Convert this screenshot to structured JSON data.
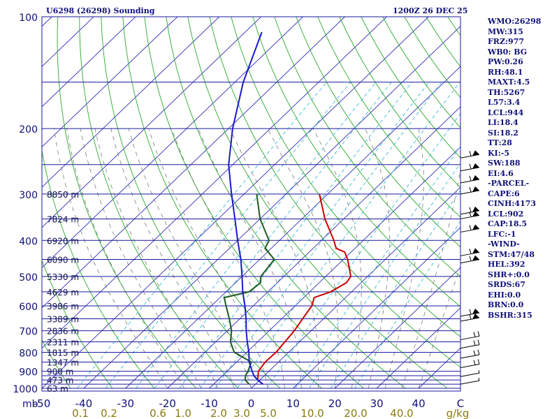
{
  "header": {
    "station": "U6298 (26298) Sounding",
    "valid_time": "1200Z 26 DEC 25"
  },
  "indices": [
    "WMO:26298",
    "MW:315",
    "FRZ:977",
    "WB0: BG",
    "PW:0.26",
    "RH:48.1",
    "MAXT:4.5",
    "TH:5267",
    "L57:3.4",
    "LCL:944",
    "LI:18.4",
    "SI:18.2",
    "TT:28",
    "KI:-5",
    "SW:188",
    "EI:4.6",
    "-PARCEL-",
    "CAPE:6",
    "CINH:4173",
    "LCL:902",
    "CAP:18.5",
    "LFC:-1",
    "-WIND-",
    "STM:47/48",
    "HEL:392",
    "SHR+:0.0",
    "SRDS:67",
    "EHI:0.0",
    "BRN:0.0",
    "BSHR:315"
  ],
  "colors": {
    "isobar": "#1a1aa0",
    "isotherm": "#3030b8",
    "dry_adiabat": "#2aaa2a",
    "mixing_ratio": "#3bb8d8",
    "moist_adiabat": "#7a7a7a",
    "temperature": "#cc0000",
    "dewpoint": "#1e5a1e",
    "parcel": "#1a1ac8",
    "axis_text": "#10107a",
    "mix_text": "#8a7a10"
  },
  "chart_data": {
    "type": "line",
    "title": "U6298 (26298) Sounding",
    "xlabel": "",
    "ylabel": "mb",
    "pressure_range": [
      100,
      1000
    ],
    "temperature_range": [
      -50,
      50
    ],
    "pressure_ticks": [
      100,
      200,
      300,
      400,
      500,
      600,
      700,
      800,
      900,
      1000
    ],
    "temperature_ticks": [
      -50,
      -40,
      -30,
      -20,
      -10,
      0,
      10,
      20,
      30,
      40
    ],
    "temperature_tick_labels": [
      "-50",
      "-40",
      "-30",
      "-20",
      "-10",
      "0",
      "10",
      "20",
      "30",
      "40",
      "C"
    ],
    "mixing_ratio_labels": [
      "0.1",
      "0.2",
      "0.6",
      "1.0",
      "2.0",
      "3.0",
      "5.0",
      "10.0",
      "20.0",
      "40.0",
      "g/kg"
    ],
    "height_labels": [
      {
        "p": 300,
        "label": "8850 m"
      },
      {
        "p": 350,
        "label": "7824 m"
      },
      {
        "p": 400,
        "label": "6920 m"
      },
      {
        "p": 450,
        "label": "6090 m"
      },
      {
        "p": 500,
        "label": "5330 m"
      },
      {
        "p": 550,
        "label": "4629 m"
      },
      {
        "p": 600,
        "label": "3986 m"
      },
      {
        "p": 650,
        "label": "3389 m"
      },
      {
        "p": 700,
        "label": "2836 m"
      },
      {
        "p": 750,
        "label": "2311 m"
      },
      {
        "p": 800,
        "label": "1815 m"
      },
      {
        "p": 850,
        "label": "1347 m"
      },
      {
        "p": 900,
        "label": "900 m"
      },
      {
        "p": 950,
        "label": "473 m"
      },
      {
        "p": 1000,
        "label": "63 m"
      }
    ],
    "series": [
      {
        "name": "Temperature",
        "points": [
          {
            "p": 975,
            "t": 1.8
          },
          {
            "p": 950,
            "t": -0.5
          },
          {
            "p": 925,
            "t": -1.5
          },
          {
            "p": 900,
            "t": -2.5
          },
          {
            "p": 850,
            "t": -3.2
          },
          {
            "p": 800,
            "t": -3.0
          },
          {
            "p": 750,
            "t": -3.5
          },
          {
            "p": 700,
            "t": -4.0
          },
          {
            "p": 650,
            "t": -5.0
          },
          {
            "p": 600,
            "t": -6.0
          },
          {
            "p": 570,
            "t": -7.5
          },
          {
            "p": 550,
            "t": -5.0
          },
          {
            "p": 520,
            "t": -3.5
          },
          {
            "p": 500,
            "t": -4.0
          },
          {
            "p": 450,
            "t": -9.0
          },
          {
            "p": 430,
            "t": -11.5
          },
          {
            "p": 420,
            "t": -14.5
          },
          {
            "p": 400,
            "t": -17.0
          },
          {
            "p": 350,
            "t": -24.5
          },
          {
            "p": 300,
            "t": -32.0
          }
        ]
      },
      {
        "name": "Dewpoint",
        "points": [
          {
            "p": 975,
            "t": -1.5
          },
          {
            "p": 950,
            "t": -3.5
          },
          {
            "p": 925,
            "t": -4.5
          },
          {
            "p": 900,
            "t": -5.0
          },
          {
            "p": 850,
            "t": -6.5
          },
          {
            "p": 800,
            "t": -13.0
          },
          {
            "p": 750,
            "t": -16.5
          },
          {
            "p": 700,
            "t": -19.0
          },
          {
            "p": 650,
            "t": -22.5
          },
          {
            "p": 600,
            "t": -26.5
          },
          {
            "p": 570,
            "t": -29.0
          },
          {
            "p": 550,
            "t": -24.5
          },
          {
            "p": 520,
            "t": -24.0
          },
          {
            "p": 500,
            "t": -25.5
          },
          {
            "p": 450,
            "t": -26.5
          },
          {
            "p": 420,
            "t": -31.5
          },
          {
            "p": 400,
            "t": -32.5
          },
          {
            "p": 350,
            "t": -40.0
          },
          {
            "p": 300,
            "t": -47.0
          }
        ]
      },
      {
        "name": "Parcel",
        "points": [
          {
            "p": 975,
            "t": 1.8
          },
          {
            "p": 950,
            "t": -0.5
          },
          {
            "p": 925,
            "t": -2.5
          },
          {
            "p": 900,
            "t": -4.0
          },
          {
            "p": 850,
            "t": -7.0
          },
          {
            "p": 800,
            "t": -9.5
          },
          {
            "p": 750,
            "t": -12.5
          },
          {
            "p": 700,
            "t": -15.5
          },
          {
            "p": 650,
            "t": -18.5
          },
          {
            "p": 600,
            "t": -22.0
          },
          {
            "p": 550,
            "t": -26.0
          },
          {
            "p": 500,
            "t": -30.0
          },
          {
            "p": 450,
            "t": -34.5
          },
          {
            "p": 400,
            "t": -40.0
          },
          {
            "p": 350,
            "t": -46.0
          },
          {
            "p": 300,
            "t": -53.0
          },
          {
            "p": 250,
            "t": -61.0
          },
          {
            "p": 200,
            "t": -69.0
          },
          {
            "p": 150,
            "t": -78.0
          },
          {
            "p": 110,
            "t": -86.0
          }
        ]
      }
    ],
    "wind_barbs": [
      {
        "p": 240,
        "label": "high"
      },
      {
        "p": 260,
        "label": "high"
      },
      {
        "p": 280,
        "label": "high"
      },
      {
        "p": 300,
        "label": "high"
      },
      {
        "p": 340,
        "label": "high"
      },
      {
        "p": 350,
        "label": "high"
      },
      {
        "p": 380,
        "label": "high"
      },
      {
        "p": 440,
        "label": "mid"
      },
      {
        "p": 460,
        "label": "mid"
      },
      {
        "p": 640,
        "label": "mid"
      },
      {
        "p": 660,
        "label": "mid"
      },
      {
        "p": 740,
        "label": "low"
      },
      {
        "p": 780,
        "label": "low"
      },
      {
        "p": 830,
        "label": "low"
      },
      {
        "p": 880,
        "label": "low"
      },
      {
        "p": 930,
        "label": "sfc"
      },
      {
        "p": 975,
        "label": "sfc"
      }
    ]
  }
}
